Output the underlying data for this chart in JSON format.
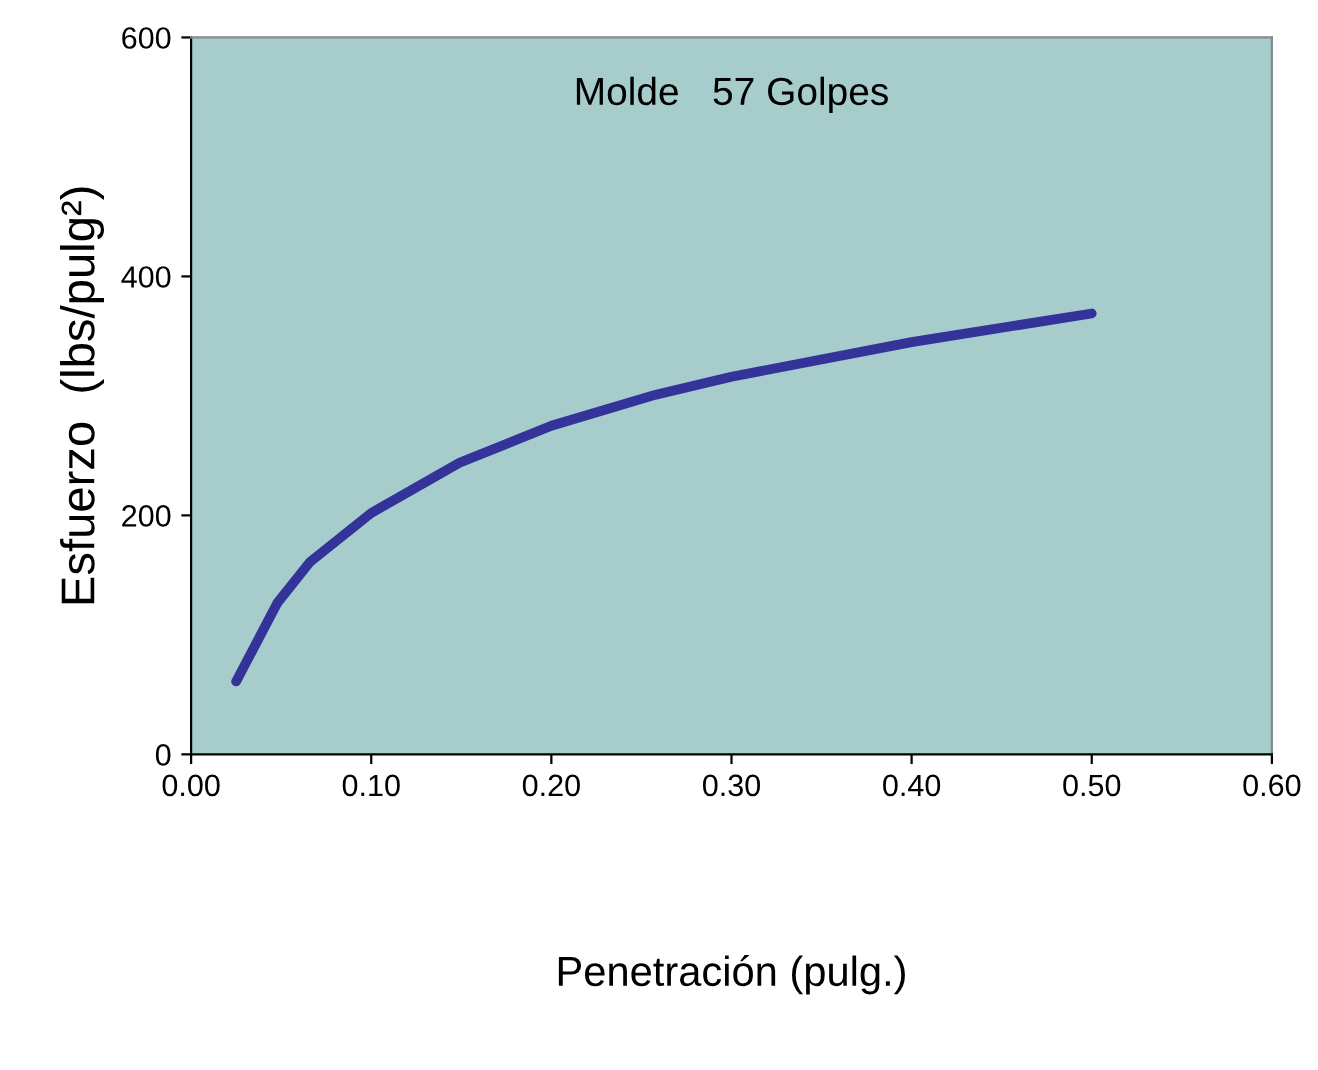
{
  "chart_data": {
    "type": "line",
    "title": "Molde   57 Golpes",
    "xlabel": "Penetración (pulg.)",
    "ylabel": "Esfuerzo  (lbs/pulg²)",
    "x": [
      0.025,
      0.048,
      0.066,
      0.1,
      0.149,
      0.2,
      0.258,
      0.3,
      0.4,
      0.5
    ],
    "series": [
      {
        "color": "#333399",
        "values": [
          61,
          127,
          161,
          202,
          244,
          275,
          301,
          316,
          345,
          369
        ]
      }
    ],
    "xlim": [
      0,
      0.6
    ],
    "xticks": [
      {
        "value": 0,
        "label": "0.00"
      },
      {
        "value": 0.1,
        "label": "0.10"
      },
      {
        "value": 0.2,
        "label": "0.20"
      },
      {
        "value": 0.3,
        "label": "0.30"
      },
      {
        "value": 0.4,
        "label": "0.40"
      },
      {
        "value": 0.5,
        "label": "0.50"
      },
      {
        "value": 0.6,
        "label": "0.60"
      }
    ],
    "ylim": [
      0,
      600
    ],
    "yticks": [
      0,
      200,
      400,
      600
    ],
    "grid": false,
    "legend": false,
    "marker": "none",
    "line_style": "solid"
  }
}
